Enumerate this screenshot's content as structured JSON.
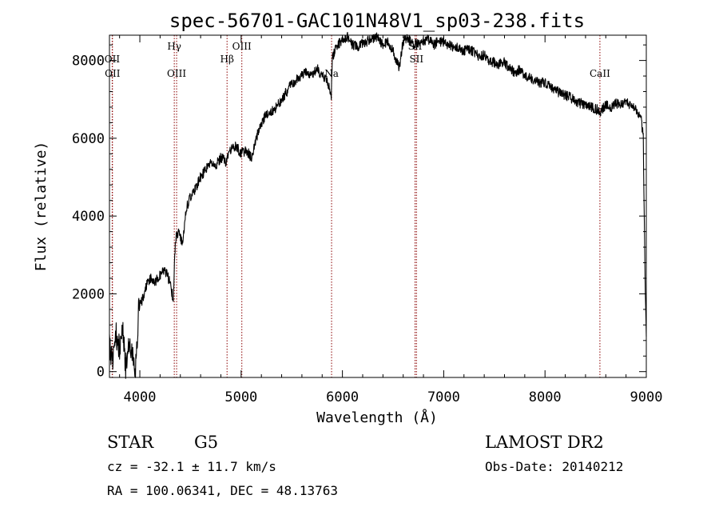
{
  "chart_data": {
    "type": "line",
    "title": "spec-56701-GAC101N48V1_sp03-238.fits",
    "xlabel": "Wavelength (Å)",
    "ylabel": "Flux (relative)",
    "xlim": [
      3700,
      9000
    ],
    "ylim": [
      -150,
      8650
    ],
    "xticks": [
      "4000",
      "5000",
      "6000",
      "7000",
      "8000",
      "9000"
    ],
    "yticks": [
      "0",
      "2000",
      "4000",
      "6000",
      "8000"
    ],
    "xtick_values": [
      4000,
      5000,
      6000,
      7000,
      8000,
      9000
    ],
    "ytick_values": [
      0,
      2000,
      4000,
      6000,
      8000
    ],
    "line_color": "#000000",
    "marker_color": "#8b0000",
    "series": [
      {
        "x": [
          3700,
          3730,
          3760,
          3800,
          3830,
          3860,
          3900,
          3930,
          3960,
          3990,
          4020,
          4060,
          4100,
          4150,
          4200,
          4250,
          4300,
          4330,
          4350,
          4380,
          4420,
          4460,
          4500,
          4550,
          4600,
          4650,
          4700,
          4750,
          4800,
          4850,
          4900,
          4950,
          5000,
          5050,
          5100,
          5150,
          5200,
          5250,
          5300,
          5350,
          5400,
          5450,
          5500,
          5550,
          5600,
          5650,
          5700,
          5750,
          5800,
          5850,
          5890,
          5900,
          5920,
          5950,
          6000,
          6050,
          6100,
          6150,
          6200,
          6250,
          6300,
          6350,
          6400,
          6450,
          6500,
          6560,
          6600,
          6650,
          6700,
          6750,
          6800,
          6850,
          6900,
          6950,
          7000,
          7050,
          7100,
          7150,
          7200,
          7250,
          7300,
          7350,
          7400,
          7450,
          7500,
          7550,
          7600,
          7650,
          7700,
          7750,
          7800,
          7850,
          7900,
          7950,
          8000,
          8050,
          8100,
          8150,
          8200,
          8250,
          8300,
          8350,
          8400,
          8450,
          8500,
          8550,
          8600,
          8650,
          8700,
          8750,
          8800,
          8850,
          8900,
          8950,
          8970,
          8980,
          8990,
          9000
        ],
        "y": [
          800,
          200,
          1000,
          600,
          1100,
          100,
          900,
          300,
          150,
          1700,
          1800,
          2200,
          2400,
          2300,
          2500,
          2600,
          2300,
          1800,
          3400,
          3600,
          3300,
          4200,
          4500,
          4700,
          5000,
          5200,
          5400,
          5300,
          5500,
          5400,
          5700,
          5800,
          5600,
          5700,
          5500,
          6000,
          6400,
          6600,
          6700,
          6800,
          7000,
          7200,
          7400,
          7500,
          7600,
          7700,
          7650,
          7800,
          7600,
          7500,
          7100,
          8100,
          8200,
          8400,
          8500,
          8600,
          8400,
          8350,
          8450,
          8500,
          8550,
          8600,
          8400,
          8500,
          8250,
          7800,
          8500,
          8550,
          8400,
          8450,
          8500,
          8550,
          8400,
          8500,
          8450,
          8400,
          8350,
          8300,
          8250,
          8300,
          8200,
          8100,
          8150,
          8000,
          7950,
          7900,
          7950,
          7800,
          7700,
          7750,
          7600,
          7550,
          7500,
          7400,
          7450,
          7300,
          7250,
          7150,
          7100,
          7050,
          6950,
          6900,
          6850,
          6800,
          6750,
          6700,
          6850,
          6800,
          6900,
          6850,
          6950,
          6800,
          6750,
          6500,
          6000,
          4000,
          2000,
          900
        ]
      }
    ],
    "line_markers": [
      {
        "x": 3727,
        "label": "OII",
        "row": "upper"
      },
      {
        "x": 3730,
        "label": "OII",
        "row": "lower"
      },
      {
        "x": 4340,
        "label": "Hγ",
        "row": "top"
      },
      {
        "x": 4363,
        "label": "OIII",
        "row": "lower"
      },
      {
        "x": 4861,
        "label": "Hβ",
        "row": "upper"
      },
      {
        "x": 5007,
        "label": "OIII",
        "row": "top"
      },
      {
        "x": 5893,
        "label": "Na",
        "row": "lower"
      },
      {
        "x": 6717,
        "label": "SII",
        "row": "top"
      },
      {
        "x": 6731,
        "label": "SII",
        "row": "upper"
      },
      {
        "x": 8542,
        "label": "CaII",
        "row": "lower"
      }
    ]
  },
  "info": {
    "object_class": "STAR",
    "subclass": "G5",
    "survey": "LAMOST DR2",
    "cz": "cz = -32.1 ± 11.7 km/s",
    "obs_date": "Obs-Date: 20140212",
    "coords": "RA = 100.06341, DEC =  48.13763"
  }
}
